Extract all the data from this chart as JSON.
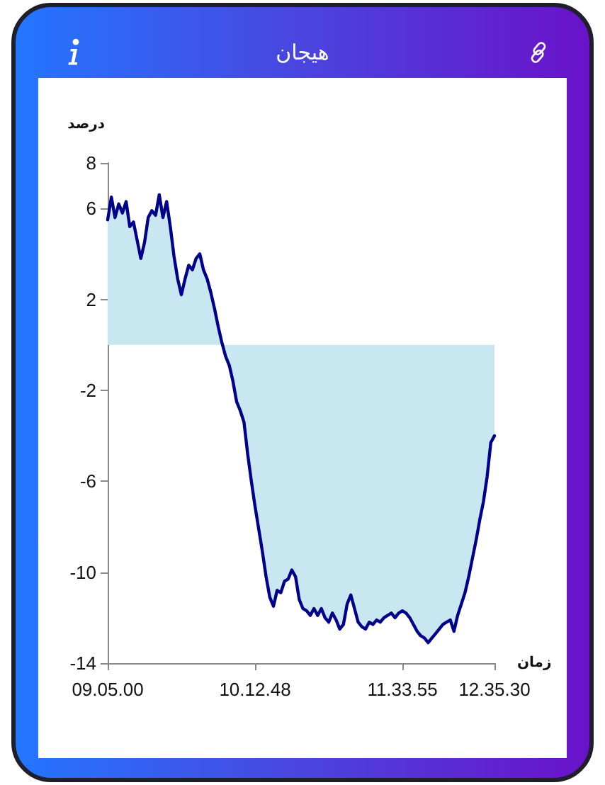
{
  "chart_data": {
    "type": "area",
    "title": "هیجان",
    "xlabel": "زمان",
    "ylabel": "درصد",
    "categories": [
      "09.05.00",
      null,
      null,
      null,
      null,
      null,
      null,
      null,
      null,
      null,
      null,
      null,
      null,
      null,
      null,
      null,
      null,
      null,
      null,
      null,
      null,
      null,
      null,
      null,
      null,
      null,
      null,
      null,
      null,
      null,
      null,
      null,
      null,
      null,
      null,
      null,
      null,
      null,
      null,
      null,
      "10.12.48",
      null,
      null,
      null,
      null,
      null,
      null,
      null,
      null,
      null,
      null,
      null,
      null,
      null,
      null,
      null,
      null,
      null,
      null,
      null,
      null,
      null,
      null,
      null,
      null,
      null,
      null,
      null,
      null,
      null,
      null,
      null,
      null,
      null,
      null,
      null,
      null,
      null,
      null,
      null,
      "11.33.55",
      null,
      null,
      null,
      null,
      null,
      null,
      null,
      null,
      null,
      null,
      null,
      null,
      null,
      null,
      null,
      null,
      null,
      null,
      null,
      null,
      null,
      null,
      null,
      null,
      "12.35.30"
    ],
    "color": "#00008b",
    "values": [
      5.5,
      6.5,
      5.6,
      6.2,
      5.8,
      6.3,
      5.2,
      5.4,
      4.6,
      3.8,
      4.5,
      5.6,
      5.9,
      5.7,
      6.6,
      5.6,
      6.3,
      5.2,
      3.9,
      2.9,
      2.2,
      2.9,
      3.5,
      3.3,
      3.8,
      4.0,
      3.3,
      2.9,
      2.3,
      1.6,
      0.8,
      0.1,
      -0.5,
      -0.9,
      -1.6,
      -2.5,
      -2.9,
      -3.4,
      -4.8,
      -6.0,
      -7.1,
      -8.1,
      -9.1,
      -10.2,
      -11.1,
      -11.5,
      -10.8,
      -10.9,
      -10.4,
      -10.3,
      -9.9,
      -10.2,
      -11.2,
      -11.6,
      -11.7,
      -11.9,
      -11.6,
      -11.9,
      -11.6,
      -12.0,
      -12.2,
      -11.8,
      -12.1,
      -12.5,
      -12.3,
      -11.4,
      -11.0,
      -11.6,
      -12.2,
      -12.4,
      -12.5,
      -12.2,
      -12.3,
      -12.1,
      -12.2,
      -12.0,
      -11.9,
      -11.8,
      -12.0,
      -11.8,
      -11.7,
      -11.8,
      -12.0,
      -12.3,
      -12.6,
      -12.8,
      -12.9,
      -13.1,
      -12.9,
      -12.7,
      -12.5,
      -12.3,
      -12.2,
      -12.1,
      -12.6,
      -11.9,
      -11.4,
      -10.9,
      -10.2,
      -9.4,
      -8.6,
      -7.7,
      -6.9,
      -5.8,
      -4.3,
      -4.0
    ],
    "ylim": [
      -14,
      8
    ],
    "yticks": [
      -14,
      -10,
      -6,
      -2,
      2,
      6,
      8
    ],
    "marker": "none"
  }
}
